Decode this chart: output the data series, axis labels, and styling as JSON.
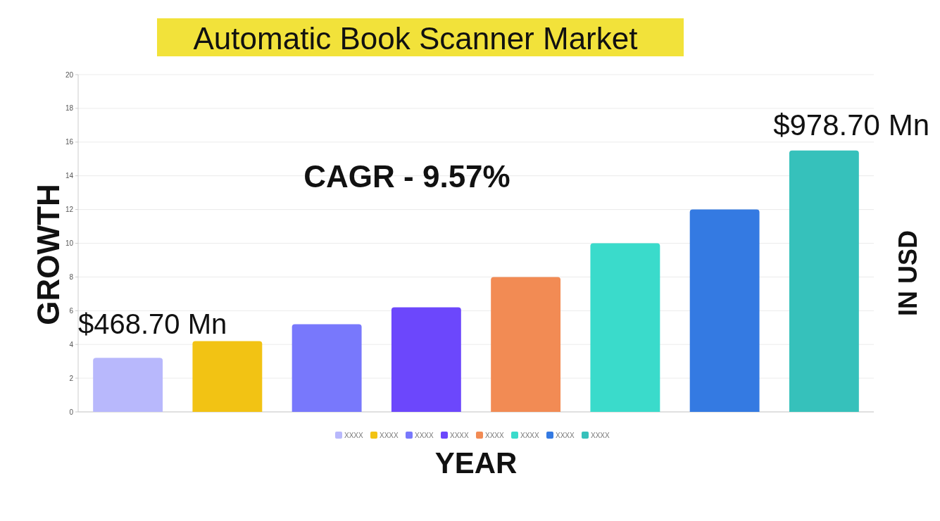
{
  "chart_data": {
    "type": "bar",
    "title": "Automatic Book Scanner Market",
    "xlabel": "YEAR",
    "ylabel": "GROWTH",
    "y2label": "IN USD",
    "annotations": [
      "$468.70 Mn",
      "CAGR - 9.57%",
      "$978.70 Mn"
    ],
    "categories": [
      null,
      null,
      null,
      null,
      null,
      null,
      null,
      null
    ],
    "series": [
      {
        "name": "XXXX",
        "color": "#b8b8fc",
        "values": [
          3.2,
          null,
          null,
          null,
          null,
          null,
          null,
          null
        ]
      },
      {
        "name": "XXXX",
        "color": "#f2c314",
        "values": [
          null,
          4.2,
          null,
          null,
          null,
          null,
          null,
          null
        ]
      },
      {
        "name": "XXXX",
        "color": "#7878fc",
        "values": [
          null,
          null,
          5.2,
          null,
          null,
          null,
          null,
          null
        ]
      },
      {
        "name": "XXXX",
        "color": "#6c47fc",
        "values": [
          null,
          null,
          null,
          6.2,
          null,
          null,
          null,
          null
        ]
      },
      {
        "name": "XXXX",
        "color": "#f28b54",
        "values": [
          null,
          null,
          null,
          null,
          8.0,
          null,
          null,
          null
        ]
      },
      {
        "name": "XXXX",
        "color": "#3adbcb",
        "values": [
          null,
          null,
          null,
          null,
          null,
          10.0,
          null,
          null
        ]
      },
      {
        "name": "XXXX",
        "color": "#347ae2",
        "values": [
          null,
          null,
          null,
          null,
          null,
          null,
          12.0,
          null
        ]
      },
      {
        "name": "XXXX",
        "color": "#36c1bb",
        "values": [
          null,
          null,
          null,
          null,
          null,
          null,
          null,
          15.5
        ]
      }
    ],
    "ylim": [
      0,
      20
    ],
    "yticks": [
      0,
      2,
      4,
      6,
      8,
      10,
      12,
      14,
      16,
      18,
      20
    ],
    "grid": "y",
    "legend": "bottom"
  }
}
